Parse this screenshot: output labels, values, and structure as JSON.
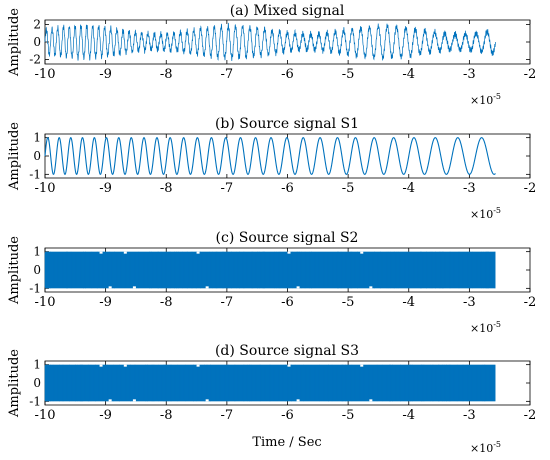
{
  "figure": {
    "xlabel": "Time / Sec",
    "exponent_base": "×10",
    "exponent_power": "-5"
  },
  "chart_data": [
    {
      "type": "line",
      "title": "(a) Mixed signal",
      "ylabel": "Amplitude",
      "xlim": [
        -10,
        -2
      ],
      "x_scale": "1e-5",
      "ylim": [
        -2.5,
        2.5
      ],
      "x_ticks": [
        "-10",
        "-9",
        "-8",
        "-7",
        "-6",
        "-5",
        "-4",
        "-3",
        "-2"
      ],
      "y_ticks": [
        "2",
        "0",
        "-2"
      ],
      "grid": false,
      "series": [
        {
          "color": "#0072BD",
          "x_range": [
            -10,
            -2.57
          ],
          "cycles": 80,
          "amplitude": 1.8,
          "noise": 0.4
        }
      ]
    },
    {
      "type": "line",
      "title": "(b) Source signal S1",
      "ylabel": "Amplitude",
      "xlim": [
        -10,
        -2
      ],
      "x_scale": "1e-5",
      "ylim": [
        -1.2,
        1.2
      ],
      "x_ticks": [
        "-10",
        "-9",
        "-8",
        "-7",
        "-6",
        "-5",
        "-4",
        "-3",
        "-2"
      ],
      "y_ticks": [
        "1",
        "0",
        "-1"
      ],
      "grid": false,
      "series": [
        {
          "color": "#0072BD",
          "x_range": [
            -10,
            -2.57
          ],
          "cycles": 40,
          "amplitude": 1
        }
      ]
    },
    {
      "type": "line",
      "title": "(c) Source signal S2",
      "ylabel": "Amplitude",
      "xlim": [
        -10,
        -2
      ],
      "x_scale": "1e-5",
      "ylim": [
        -1.2,
        1.2
      ],
      "x_ticks": [
        "-10",
        "-9",
        "-8",
        "-7",
        "-6",
        "-5",
        "-4",
        "-3",
        "-2"
      ],
      "y_ticks": [
        "1",
        "0",
        "-1"
      ],
      "grid": false,
      "series": [
        {
          "color": "#0072BD",
          "x_range": [
            -10,
            -2.57
          ],
          "cycles": "dense",
          "amplitude": 1
        }
      ]
    },
    {
      "type": "line",
      "title": "(d) Source signal S3",
      "ylabel": "Amplitude",
      "xlim": [
        -10,
        -2
      ],
      "x_scale": "1e-5",
      "ylim": [
        -1.2,
        1.2
      ],
      "x_ticks": [
        "-10",
        "-9",
        "-8",
        "-7",
        "-6",
        "-5",
        "-4",
        "-3",
        "-2"
      ],
      "y_ticks": [
        "1",
        "0",
        "-1"
      ],
      "grid": false,
      "series": [
        {
          "color": "#0072BD",
          "x_range": [
            -10,
            -2.57
          ],
          "cycles": "dense",
          "amplitude": 1
        }
      ]
    }
  ]
}
